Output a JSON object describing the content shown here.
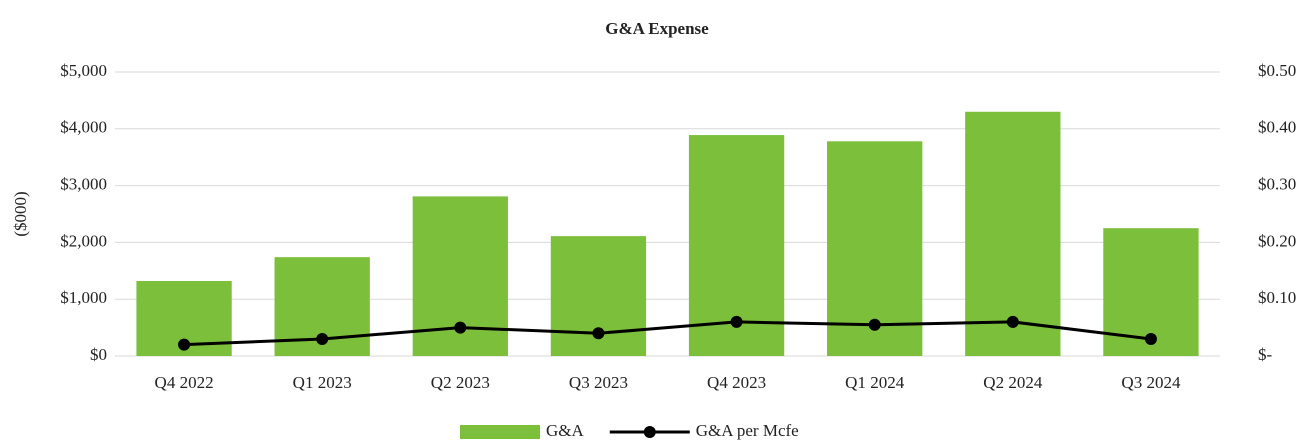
{
  "chart_data": {
    "type": "bar",
    "title": "G&A Expense",
    "y_label": "($000)",
    "categories": [
      "Q4 2022",
      "Q1 2023",
      "Q2 2023",
      "Q3 2023",
      "Q4 2023",
      "Q1 2024",
      "Q2 2024",
      "Q3 2024"
    ],
    "series": [
      {
        "name": "G&A",
        "type": "bar",
        "color": "#7bbf3a",
        "values": [
          1320,
          1740,
          2810,
          2110,
          3890,
          3780,
          4300,
          2250
        ]
      },
      {
        "name": "G&A per Mcfe",
        "type": "line",
        "axis": "y2",
        "color": "#000000",
        "values": [
          0.02,
          0.03,
          0.05,
          0.04,
          0.06,
          0.055,
          0.06,
          0.03
        ]
      }
    ],
    "ylim": [
      0,
      5000
    ],
    "yticks": [
      {
        "value": 0,
        "label": "$0"
      },
      {
        "value": 1000,
        "label": "$1,000"
      },
      {
        "value": 2000,
        "label": "$2,000"
      },
      {
        "value": 3000,
        "label": "$3,000"
      },
      {
        "value": 4000,
        "label": "$4,000"
      },
      {
        "value": 5000,
        "label": "$5,000"
      }
    ],
    "y2lim": [
      0,
      0.5
    ],
    "y2ticks": [
      {
        "value": 0,
        "label": "$-"
      },
      {
        "value": 0.1,
        "label": "$0.10"
      },
      {
        "value": 0.2,
        "label": "$0.20"
      },
      {
        "value": 0.3,
        "label": "$0.30"
      },
      {
        "value": 0.4,
        "label": "$0.40"
      },
      {
        "value": 0.5,
        "label": "$0.50"
      }
    ],
    "grid": true,
    "legend": "bottom"
  }
}
